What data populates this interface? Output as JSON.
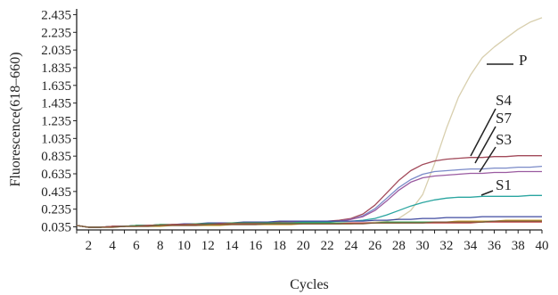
{
  "chart_data": {
    "type": "line",
    "xlabel": "Cycles",
    "ylabel": "Fluorescence(618–660)",
    "xlim": [
      1,
      40
    ],
    "ylim": [
      0,
      2.5
    ],
    "x_ticks": [
      2,
      4,
      6,
      8,
      10,
      12,
      14,
      16,
      18,
      20,
      22,
      24,
      26,
      28,
      30,
      32,
      34,
      36,
      38,
      40
    ],
    "y_ticks": [
      "0.035",
      "0.235",
      "0.435",
      "0.635",
      "0.835",
      "1.035",
      "1.235",
      "1.435",
      "1.635",
      "1.835",
      "2.035",
      "2.235",
      "2.435"
    ],
    "grid": false,
    "x": [
      1,
      2,
      3,
      4,
      5,
      6,
      7,
      8,
      9,
      10,
      11,
      12,
      13,
      14,
      15,
      16,
      17,
      18,
      19,
      20,
      21,
      22,
      23,
      24,
      25,
      26,
      27,
      28,
      29,
      30,
      31,
      32,
      33,
      34,
      35,
      36,
      37,
      38,
      39,
      40
    ],
    "series": [
      {
        "name": "P",
        "color": "#d8cfae",
        "values": [
          0.05,
          0.03,
          0.03,
          0.04,
          0.04,
          0.05,
          0.05,
          0.05,
          0.06,
          0.06,
          0.06,
          0.06,
          0.07,
          0.07,
          0.07,
          0.07,
          0.08,
          0.08,
          0.08,
          0.08,
          0.08,
          0.08,
          0.08,
          0.08,
          0.08,
          0.09,
          0.1,
          0.13,
          0.22,
          0.4,
          0.75,
          1.15,
          1.5,
          1.75,
          1.95,
          2.07,
          2.17,
          2.27,
          2.35,
          2.4
        ]
      },
      {
        "name": "S4",
        "color": "#a24a5a",
        "values": [
          0.05,
          0.03,
          0.03,
          0.04,
          0.04,
          0.05,
          0.05,
          0.06,
          0.06,
          0.06,
          0.07,
          0.07,
          0.07,
          0.07,
          0.08,
          0.08,
          0.08,
          0.09,
          0.09,
          0.09,
          0.1,
          0.1,
          0.11,
          0.13,
          0.18,
          0.28,
          0.42,
          0.56,
          0.67,
          0.74,
          0.78,
          0.8,
          0.81,
          0.82,
          0.82,
          0.83,
          0.83,
          0.84,
          0.84,
          0.84
        ]
      },
      {
        "name": "S7",
        "color": "#7a8ac8",
        "values": [
          0.05,
          0.03,
          0.03,
          0.04,
          0.04,
          0.05,
          0.05,
          0.05,
          0.06,
          0.06,
          0.06,
          0.07,
          0.07,
          0.07,
          0.08,
          0.08,
          0.08,
          0.08,
          0.09,
          0.09,
          0.09,
          0.1,
          0.1,
          0.12,
          0.16,
          0.24,
          0.36,
          0.48,
          0.57,
          0.63,
          0.66,
          0.67,
          0.68,
          0.69,
          0.69,
          0.7,
          0.7,
          0.71,
          0.71,
          0.72
        ]
      },
      {
        "name": "S3",
        "color": "#9a5aa0",
        "values": [
          0.05,
          0.03,
          0.03,
          0.04,
          0.04,
          0.05,
          0.05,
          0.05,
          0.06,
          0.06,
          0.06,
          0.07,
          0.07,
          0.07,
          0.08,
          0.08,
          0.08,
          0.08,
          0.09,
          0.09,
          0.09,
          0.1,
          0.1,
          0.12,
          0.15,
          0.22,
          0.33,
          0.45,
          0.54,
          0.59,
          0.61,
          0.62,
          0.63,
          0.64,
          0.64,
          0.65,
          0.65,
          0.66,
          0.66,
          0.66
        ]
      },
      {
        "name": "S1",
        "color": "#2aa5a0",
        "values": [
          0.05,
          0.03,
          0.03,
          0.04,
          0.04,
          0.05,
          0.05,
          0.05,
          0.06,
          0.06,
          0.06,
          0.07,
          0.07,
          0.07,
          0.07,
          0.08,
          0.08,
          0.08,
          0.08,
          0.09,
          0.09,
          0.09,
          0.1,
          0.1,
          0.11,
          0.13,
          0.17,
          0.22,
          0.27,
          0.31,
          0.34,
          0.36,
          0.37,
          0.37,
          0.38,
          0.38,
          0.38,
          0.38,
          0.39,
          0.39
        ]
      },
      {
        "name": "",
        "color": "#3f4aa0",
        "values": [
          0.05,
          0.03,
          0.03,
          0.04,
          0.04,
          0.05,
          0.05,
          0.06,
          0.06,
          0.07,
          0.07,
          0.08,
          0.08,
          0.08,
          0.09,
          0.09,
          0.09,
          0.1,
          0.1,
          0.1,
          0.1,
          0.1,
          0.1,
          0.1,
          0.1,
          0.11,
          0.11,
          0.12,
          0.12,
          0.13,
          0.13,
          0.14,
          0.14,
          0.14,
          0.15,
          0.15,
          0.15,
          0.15,
          0.15,
          0.15
        ]
      },
      {
        "name": "",
        "color": "#c8a030",
        "values": [
          0.05,
          0.03,
          0.03,
          0.03,
          0.04,
          0.04,
          0.04,
          0.04,
          0.05,
          0.05,
          0.05,
          0.05,
          0.05,
          0.06,
          0.06,
          0.06,
          0.06,
          0.06,
          0.06,
          0.07,
          0.07,
          0.07,
          0.07,
          0.07,
          0.08,
          0.08,
          0.08,
          0.08,
          0.09,
          0.09,
          0.09,
          0.09,
          0.1,
          0.1,
          0.1,
          0.1,
          0.11,
          0.11,
          0.11,
          0.11
        ]
      },
      {
        "name": "",
        "color": "#3aa050",
        "values": [
          0.05,
          0.03,
          0.03,
          0.04,
          0.04,
          0.05,
          0.05,
          0.06,
          0.06,
          0.06,
          0.07,
          0.07,
          0.07,
          0.08,
          0.08,
          0.08,
          0.08,
          0.08,
          0.08,
          0.08,
          0.08,
          0.08,
          0.08,
          0.08,
          0.08,
          0.08,
          0.09,
          0.09,
          0.09,
          0.09,
          0.09,
          0.09,
          0.09,
          0.09,
          0.09,
          0.1,
          0.1,
          0.1,
          0.1,
          0.1
        ]
      },
      {
        "name": "",
        "color": "#c04040",
        "values": [
          0.05,
          0.03,
          0.03,
          0.04,
          0.04,
          0.04,
          0.05,
          0.05,
          0.06,
          0.06,
          0.06,
          0.06,
          0.07,
          0.07,
          0.07,
          0.07,
          0.07,
          0.07,
          0.07,
          0.07,
          0.07,
          0.07,
          0.07,
          0.08,
          0.08,
          0.08,
          0.08,
          0.08,
          0.08,
          0.08,
          0.08,
          0.08,
          0.08,
          0.08,
          0.09,
          0.09,
          0.09,
          0.09,
          0.09,
          0.09
        ]
      },
      {
        "name": "",
        "color": "#7a5a3a",
        "values": [
          0.05,
          0.03,
          0.03,
          0.03,
          0.04,
          0.04,
          0.04,
          0.05,
          0.05,
          0.05,
          0.05,
          0.06,
          0.06,
          0.06,
          0.06,
          0.06,
          0.07,
          0.07,
          0.07,
          0.07,
          0.07,
          0.07,
          0.07,
          0.07,
          0.07,
          0.08,
          0.08,
          0.08,
          0.08,
          0.08,
          0.09,
          0.09,
          0.09,
          0.09,
          0.09,
          0.1,
          0.1,
          0.1,
          0.1,
          0.1
        ]
      }
    ],
    "annotations": [
      {
        "label": "P",
        "x": 35.5,
        "y": 1.93
      },
      {
        "label": "S4",
        "x": 34,
        "y": 0.83
      },
      {
        "label": "S7",
        "x": 34.5,
        "y": 0.66
      },
      {
        "label": "S3",
        "x": 35,
        "y": 0.62
      },
      {
        "label": "S1",
        "x": 34.8,
        "y": 0.34
      }
    ]
  }
}
